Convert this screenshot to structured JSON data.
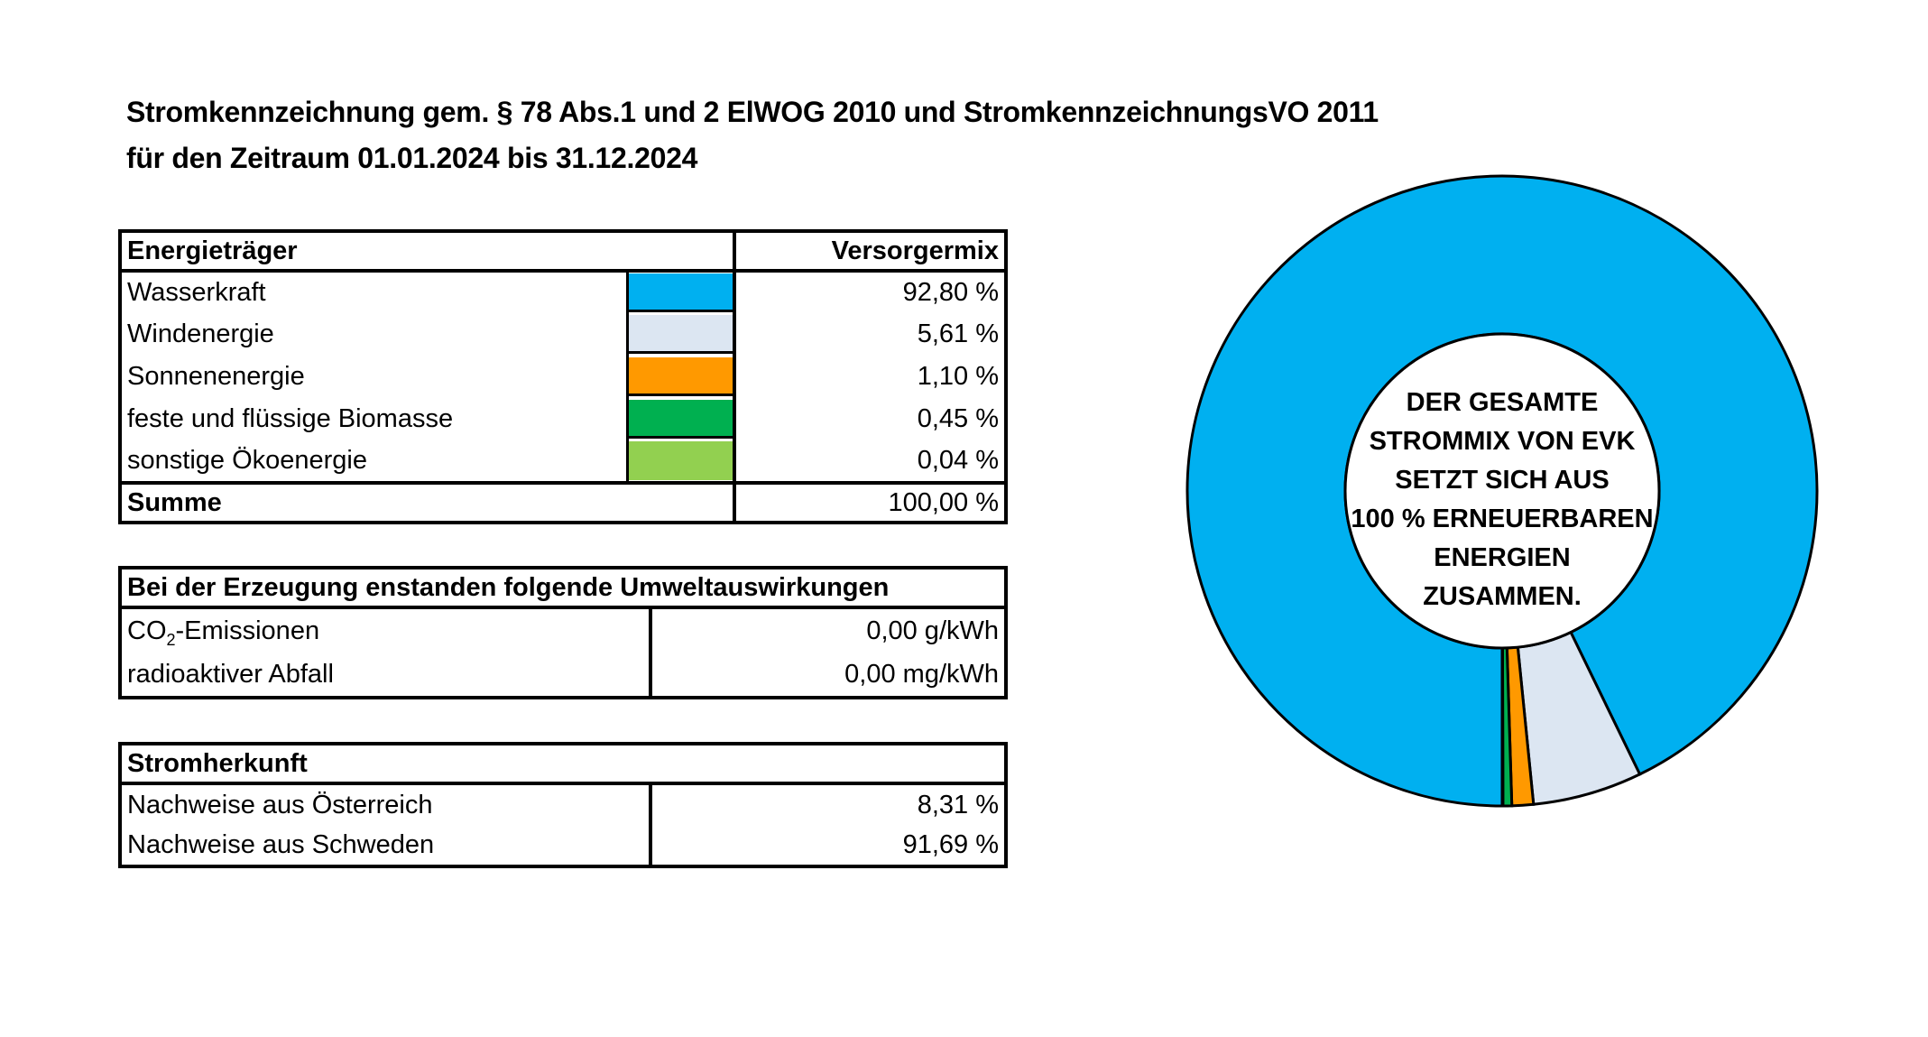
{
  "header": {
    "title_line1": "Stromkennzeichnung gem. § 78 Abs.1 und 2 ElWOG 2010 und StromkennzeichnungsVO 2011",
    "title_line2": "für den Zeitraum 01.01.2024 bis 31.12.2024"
  },
  "energy_table": {
    "col_source": "Energieträger",
    "col_mix": "Versorgermix",
    "rows": [
      {
        "label": "Wasserkraft",
        "value": "92,80 %",
        "color": "#00B0F0"
      },
      {
        "label": "Windenergie",
        "value": "5,61 %",
        "color": "#DCE6F2"
      },
      {
        "label": "Sonnenenergie",
        "value": "1,10 %",
        "color": "#FF9900"
      },
      {
        "label": "feste und flüssige Biomasse",
        "value": "0,45 %",
        "color": "#00B050"
      },
      {
        "label": "sonstige Ökoenergie",
        "value": "0,04 %",
        "color": "#92D050"
      }
    ],
    "sum_label": "Summe",
    "sum_value": "100,00 %"
  },
  "environment_table": {
    "title": "Bei der Erzeugung enstanden folgende Umweltauswirkungen",
    "rows": [
      {
        "label_main": "CO",
        "label_sub": "2",
        "label_rest": "-Emissionen",
        "value": "0,00 g/kWh"
      },
      {
        "label": "radioaktiver Abfall",
        "value": "0,00 mg/kWh"
      }
    ]
  },
  "origin_table": {
    "title": "Stromherkunft",
    "rows": [
      {
        "label": "Nachweise aus Österreich",
        "value": "8,31 %"
      },
      {
        "label": "Nachweise aus Schweden",
        "value": "91,69 %"
      }
    ]
  },
  "donut": {
    "center_text": [
      "DER GESAMTE",
      "STROMMIX VON EVK",
      "SETZT SICH AUS",
      "100 % ERNEUERBAREN",
      "ENERGIEN",
      "ZUSAMMEN."
    ]
  },
  "chart_data": {
    "type": "pie",
    "subtype": "donut",
    "title": "",
    "categories": [
      "Wasserkraft",
      "Windenergie",
      "Sonnenenergie",
      "feste und flüssige Biomasse",
      "sonstige Ökoenergie"
    ],
    "values": [
      92.8,
      5.61,
      1.1,
      0.45,
      0.04
    ],
    "colors": [
      "#00B0F0",
      "#DCE6F2",
      "#FF9900",
      "#00B050",
      "#92D050"
    ],
    "start_angle": "bottom, clockwise from Wasserkraft",
    "center_label": "DER GESAMTE STROMMIX VON EVK SETZT SICH AUS 100 % ERNEUERBAREN ENERGIEN ZUSAMMEN.",
    "legend": "none (colors shown in table)"
  }
}
